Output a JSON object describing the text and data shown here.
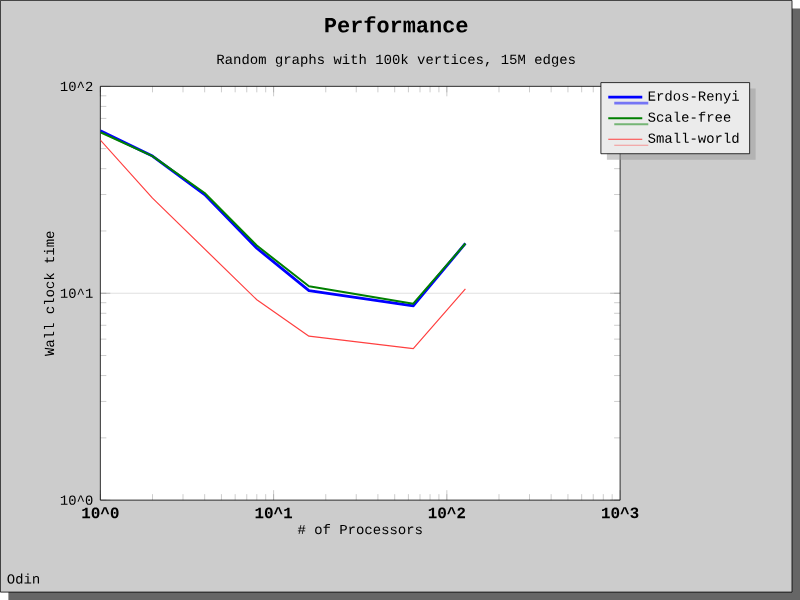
{
  "chart_data": {
    "type": "line",
    "title": "Performance",
    "subtitle": "Random graphs with 100k vertices, 15M edges",
    "xlabel": "# of Processors",
    "ylabel": "Wall clock time",
    "log": "xy",
    "xlim": [
      1,
      1000
    ],
    "ylim": [
      1,
      100
    ],
    "xticks": [
      {
        "value": 1,
        "label": "10^0"
      },
      {
        "value": 10,
        "label": "10^1"
      },
      {
        "value": 100,
        "label": "10^2"
      },
      {
        "value": 1000,
        "label": "10^3"
      }
    ],
    "yticks": [
      {
        "value": 1,
        "label": "10^0"
      },
      {
        "value": 10,
        "label": "10^1"
      },
      {
        "value": 100,
        "label": "10^2"
      }
    ],
    "grid": "y",
    "legend": "top right",
    "marker": "none",
    "line_style": "solid",
    "annotations": [
      "Odin"
    ],
    "series": [
      {
        "name": "Erdos-Renyi",
        "color": "#0000ff",
        "x": [
          1,
          2,
          4,
          8,
          16,
          64,
          128
        ],
        "values": [
          61,
          46,
          30,
          16.5,
          10.3,
          8.7,
          17.4
        ]
      },
      {
        "name": "Scale-free",
        "color": "#008000",
        "x": [
          1,
          2,
          4,
          8,
          16,
          64,
          128
        ],
        "values": [
          60,
          46,
          30.5,
          17,
          10.8,
          8.9,
          17.4
        ]
      },
      {
        "name": "Small-world",
        "color": "#ff4040",
        "x": [
          1,
          2,
          8,
          16,
          64,
          128
        ],
        "values": [
          55,
          28.8,
          9.3,
          6.2,
          5.4,
          10.5
        ]
      }
    ]
  }
}
